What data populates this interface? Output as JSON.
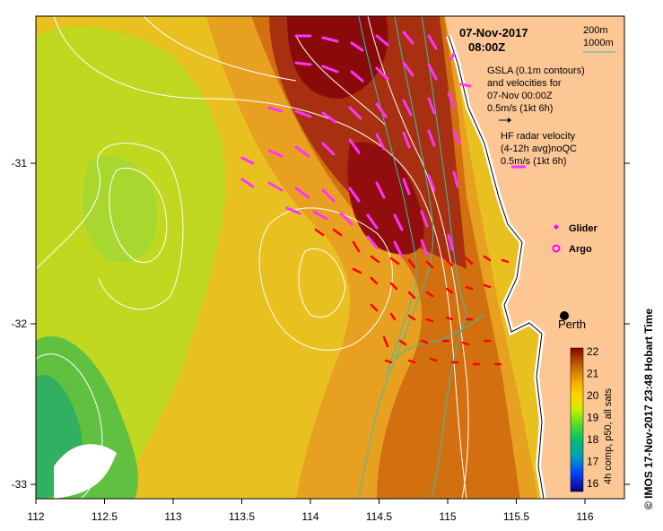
{
  "title": {
    "date": "07-Nov-2017",
    "time": "08:00Z"
  },
  "scale_legend": {
    "depth_200": "200m",
    "depth_1000": "1000m",
    "color_1000": "#2fc3b4"
  },
  "gsla_note": {
    "line1": "GSLA (0.1m contours)",
    "line2": "and velocities for",
    "line3": "07-Nov 00:00Z",
    "line4": "0.5m/s (1kt 6h)"
  },
  "radar_note": {
    "line1": "HF radar velocity",
    "line2": "(4-12h avg)noQC",
    "line3": "0.5m/s (1kt 6h)"
  },
  "markers": {
    "glider": "Glider",
    "argo": "Argo",
    "city": "Perth"
  },
  "axes": {
    "x_ticks": [
      "112",
      "112.5",
      "113",
      "113.5",
      "114",
      "114.5",
      "115",
      "115.5",
      "116"
    ],
    "y_ticks": [
      "-31",
      "-32",
      "-33"
    ]
  },
  "colorbar": {
    "ticks": [
      "22",
      "21",
      "20",
      "19",
      "18",
      "17",
      "16"
    ],
    "label": "4h comp, p50, all sats"
  },
  "credit": "© IMOS 17-Nov-2017 23:48 Hobart Time",
  "colors": {
    "land": "#fdc795",
    "glider": "#ff00ff",
    "argo": "#ff00ff",
    "gsla_vector": "#ff33ff",
    "radar_vector": "#ff0000",
    "contour": "#ffffff"
  },
  "chart_data": {
    "type": "heatmap",
    "xlabel": "",
    "ylabel": "",
    "xlim": [
      112,
      116.3
    ],
    "ylim": [
      -33.1,
      -30.1
    ],
    "colorbar_range": [
      15.7,
      22
    ],
    "perth": {
      "lon": 115.86,
      "lat": -31.95
    }
  }
}
